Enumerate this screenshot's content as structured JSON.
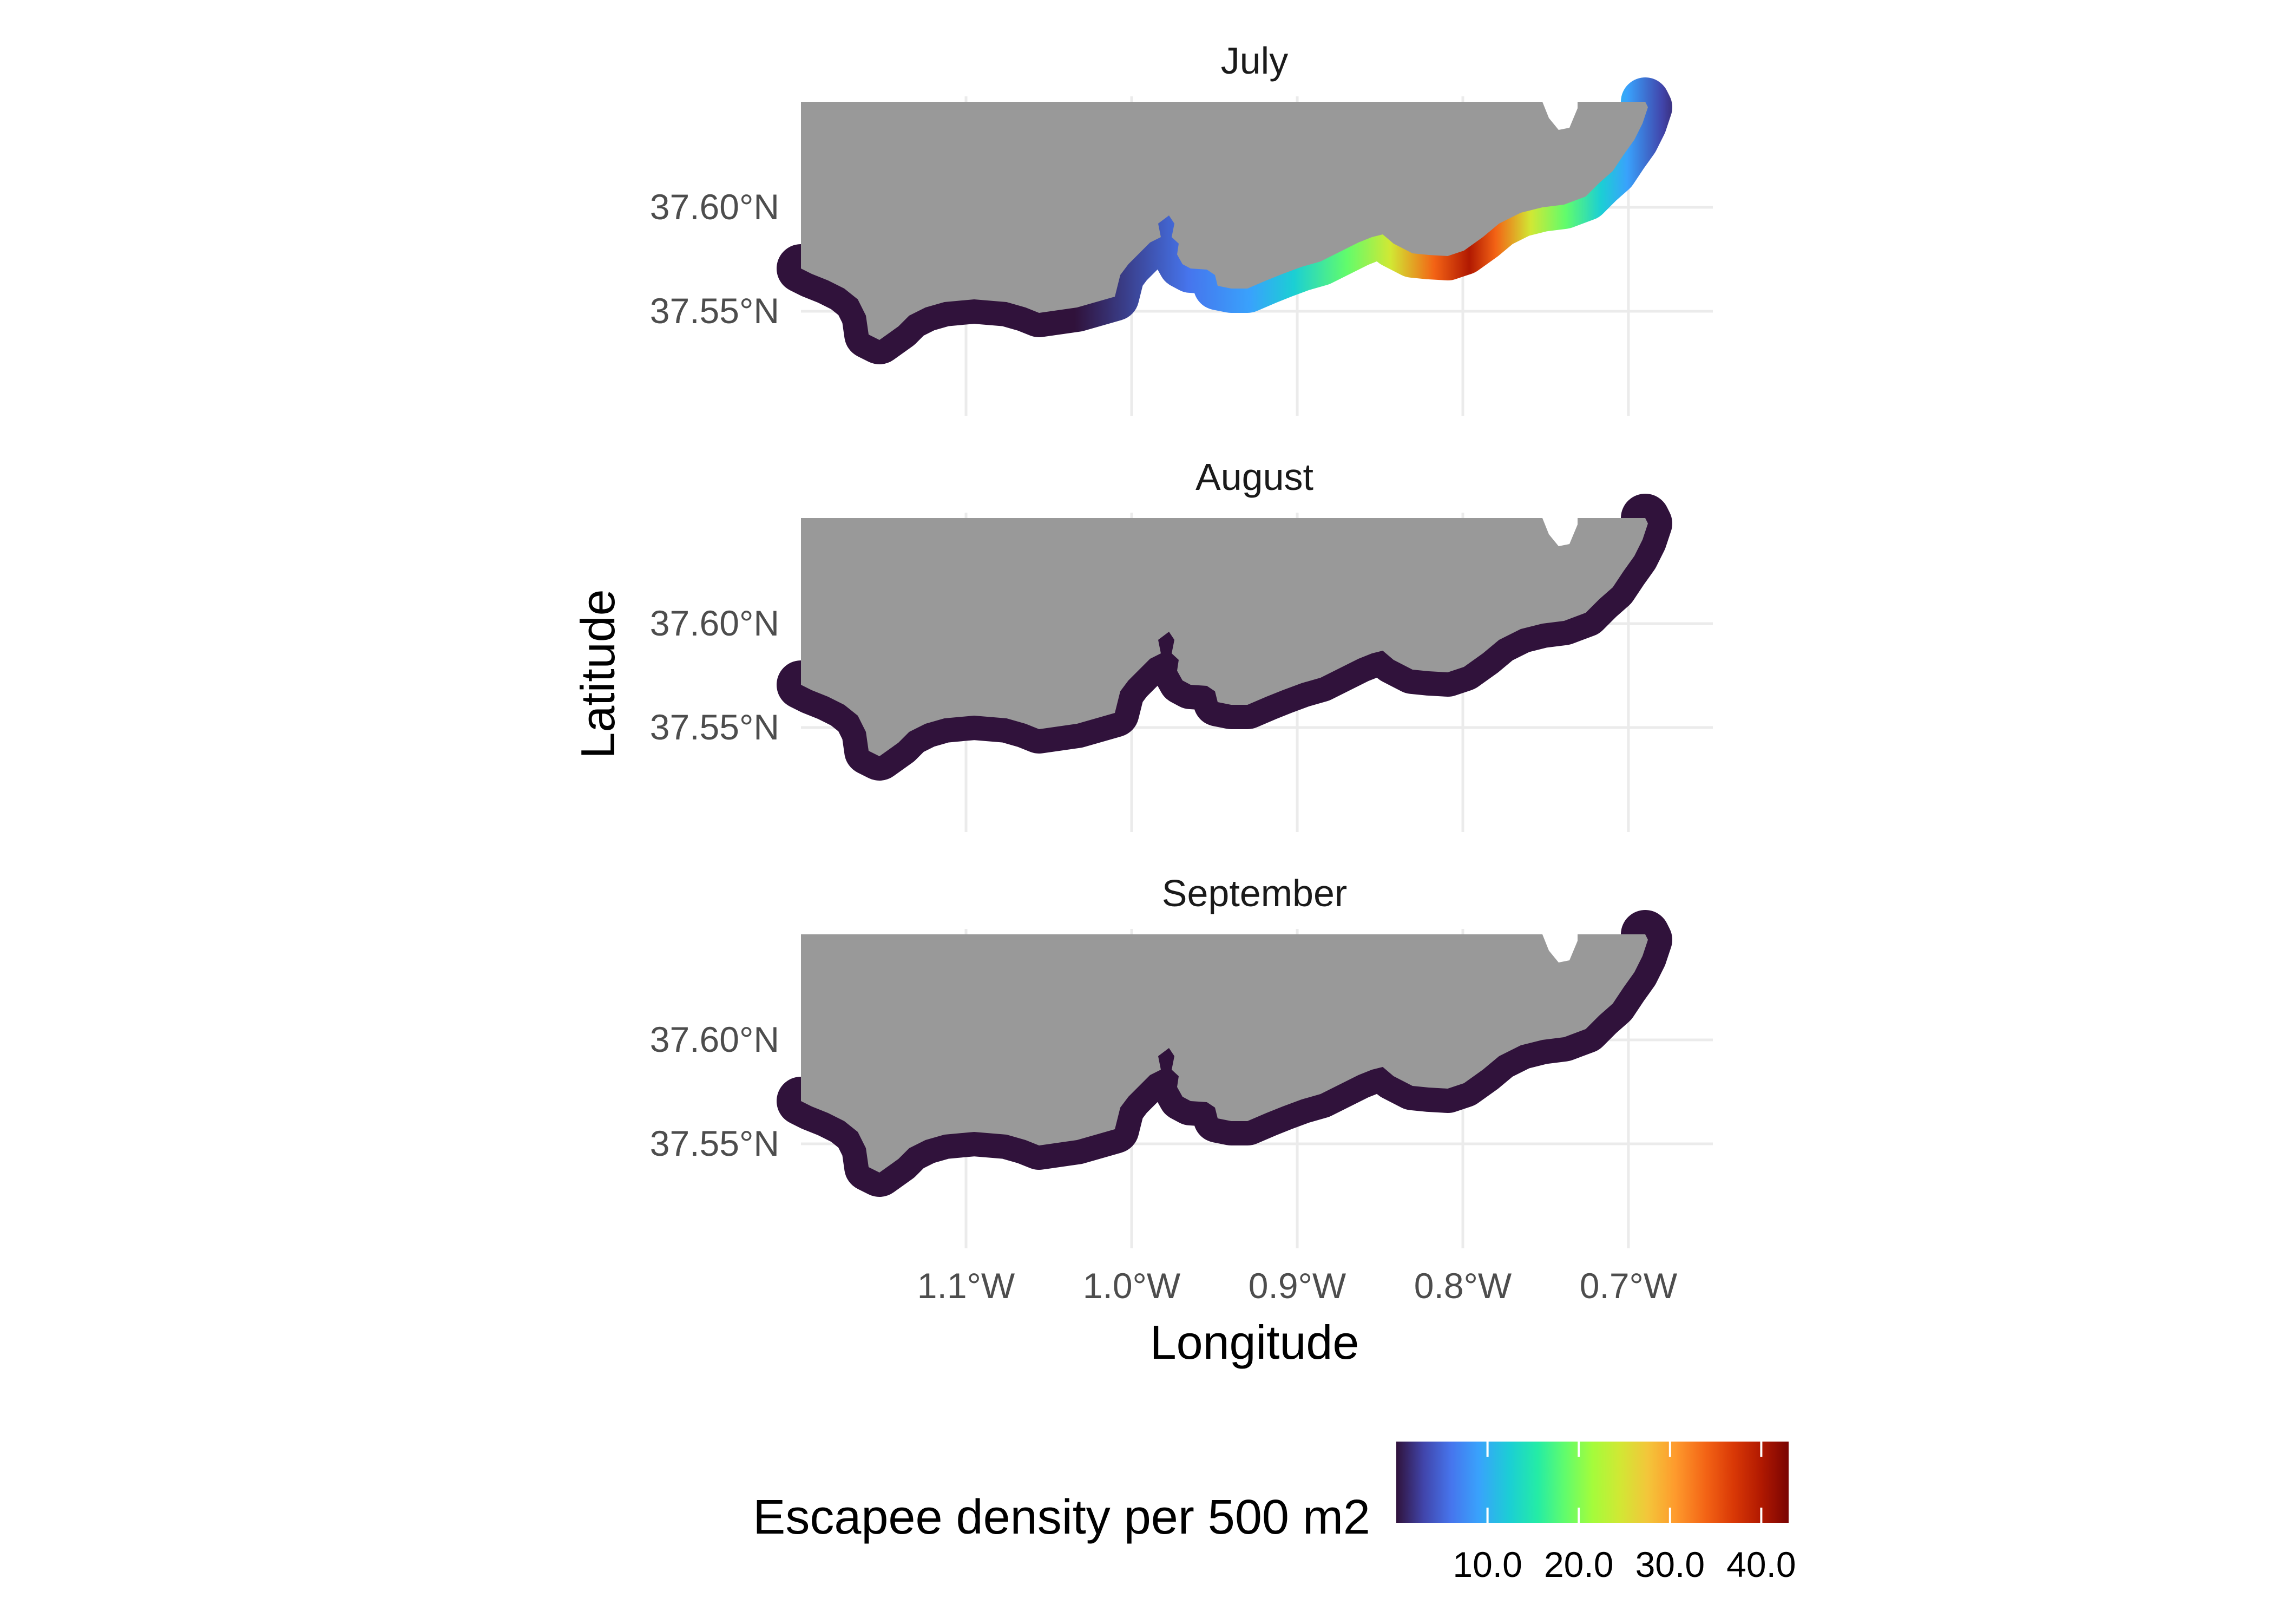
{
  "map": {
    "panels": [
      {
        "title": "July",
        "hotspot": true
      },
      {
        "title": "August",
        "hotspot": false
      },
      {
        "title": "September",
        "hotspot": false
      }
    ],
    "x_axis": {
      "title": "Longitude",
      "ticks": [
        {
          "value": -1.1,
          "label": "1.1°W"
        },
        {
          "value": -1.0,
          "label": "1.0°W"
        },
        {
          "value": -0.9,
          "label": "0.9°W"
        },
        {
          "value": -0.8,
          "label": "0.8°W"
        },
        {
          "value": -0.7,
          "label": "0.7°W"
        }
      ],
      "range": [
        -1.2,
        -0.65
      ]
    },
    "y_axis": {
      "title": "Latitude",
      "ticks": [
        {
          "value": 37.6,
          "label": "37.60°N"
        },
        {
          "value": 37.55,
          "label": "37.55°N"
        }
      ],
      "range": [
        37.5,
        37.65
      ]
    },
    "land_color": "#999999",
    "low_density_color": "#30123b",
    "legend": {
      "title": "Escapee density  per 500 m2",
      "ticks": [
        "10.0",
        "20.0",
        "30.0",
        "40.0"
      ],
      "tick_values": [
        10,
        20,
        30,
        40
      ],
      "min": 0,
      "max": 43,
      "palette": [
        "#30123b",
        "#4145ab",
        "#4675ed",
        "#39a2fc",
        "#1bcfd4",
        "#24eca6",
        "#61fc6c",
        "#a4fc3b",
        "#d1e834",
        "#f3c63a",
        "#fe9b2d",
        "#f36315",
        "#d93806",
        "#b11901",
        "#7a0403"
      ]
    }
  }
}
